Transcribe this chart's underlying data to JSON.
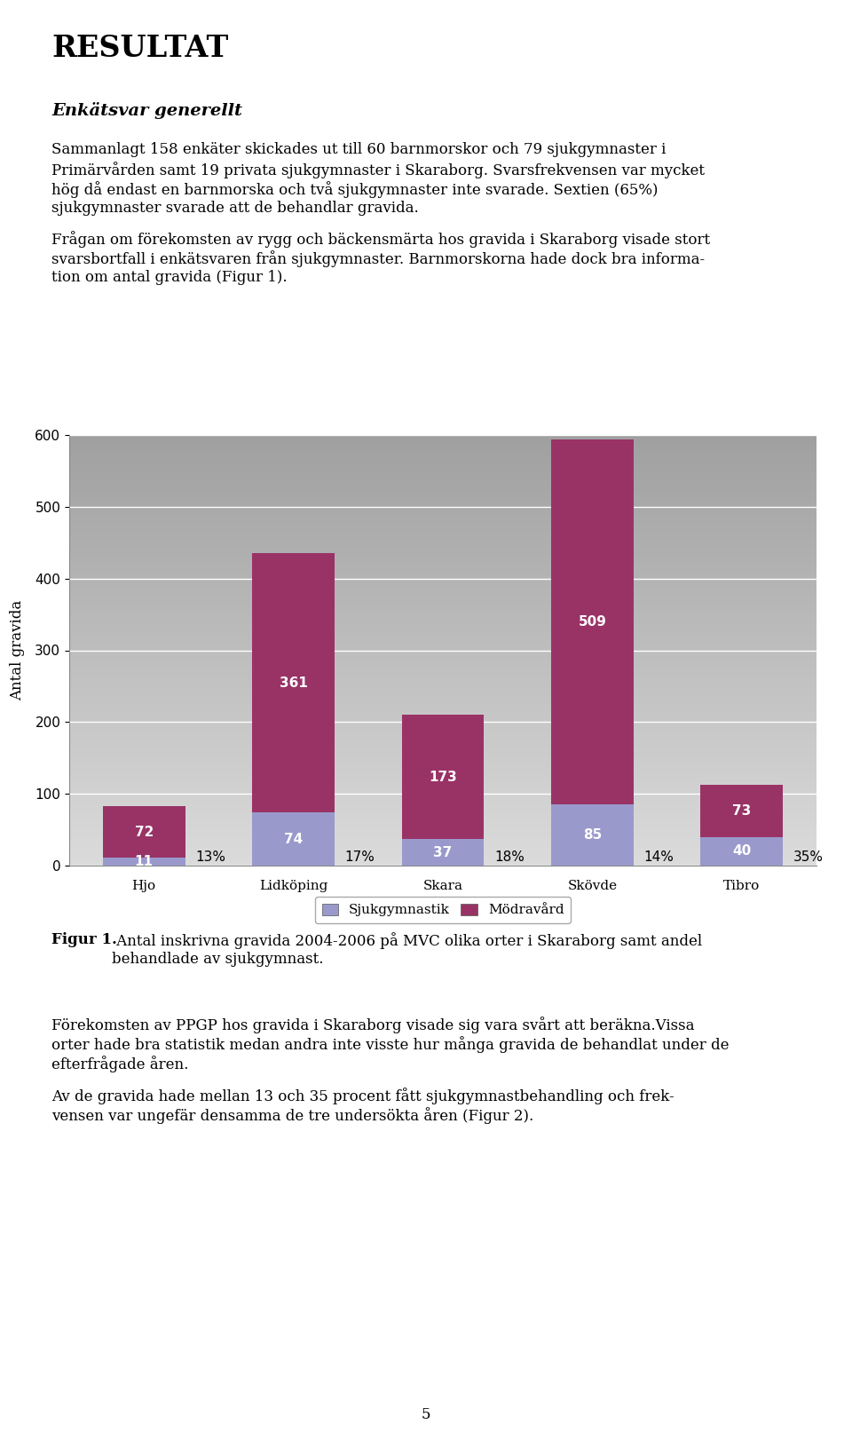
{
  "categories": [
    "Hjo",
    "Lidköping",
    "Skara",
    "Skövde",
    "Tibro"
  ],
  "sjukgymnastik": [
    11,
    74,
    37,
    85,
    40
  ],
  "modravard": [
    72,
    361,
    173,
    509,
    73
  ],
  "percentages": [
    "13%",
    "17%",
    "18%",
    "14%",
    "35%"
  ],
  "color_sjukgymnastik": "#9999CC",
  "color_modravard": "#993366",
  "ylabel": "Antal gravida",
  "ylim": [
    0,
    600
  ],
  "yticks": [
    0,
    100,
    200,
    300,
    400,
    500,
    600
  ],
  "legend_sjukgymnastik": "Sjukgymnastik",
  "legend_modravard": "Mödravård",
  "figur_label": "Figur 1.",
  "figur_caption_rest": " Antal inskrivna gravida 2004-2006 på MVC olika orter i Skaraborg samt andel\nbehandlade av sjukgymnast.",
  "title_text": "RESULTAT",
  "text_block1": "Enkätsvar generellt",
  "text_block2_lines": [
    "Sammanlagt 158 enkäter skickades ut till 60 barnmorskor och 79 sjukgymnaster i",
    "Primärvården samt 19 privata sjukgymnaster i Skaraborg. Svarsfrekvensen var mycket",
    "hög då endast en barnmorska och två sjukgymnaster inte svarade. Sextien (65%)",
    "sjukgymnaster svarade att de behandlar gravida."
  ],
  "text_block3_lines": [
    "Frågan om förekomsten av rygg och bäckensmärta hos gravida i Skaraborg visade stort",
    "svarsbortfall i enkätsvaren från sjukgymnaster. Barnmorskorna hade dock bra informa-",
    "tion om antal gravida (Figur 1)."
  ],
  "text_block4_lines": [
    "Förekomsten av PPGP hos gravida i Skaraborg visade sig vara svårt att beräkna.Vissa",
    "orter hade bra statistik medan andra inte visste hur många gravida de behandlat under de",
    "efterfrågade åren."
  ],
  "text_block5_lines": [
    "Av de gravida hade mellan 13 och 35 procent fått sjukgymnastbehandling och frek-",
    "vensen var ungefär densamma de tre undersökta åren (Figur 2)."
  ],
  "page_number": "5",
  "text_color": "#000000",
  "bar_width": 0.55,
  "label_fontsize": 10,
  "tick_fontsize": 11,
  "body_fontsize": 12,
  "title_fontsize": 24,
  "subtitle_fontsize": 14
}
